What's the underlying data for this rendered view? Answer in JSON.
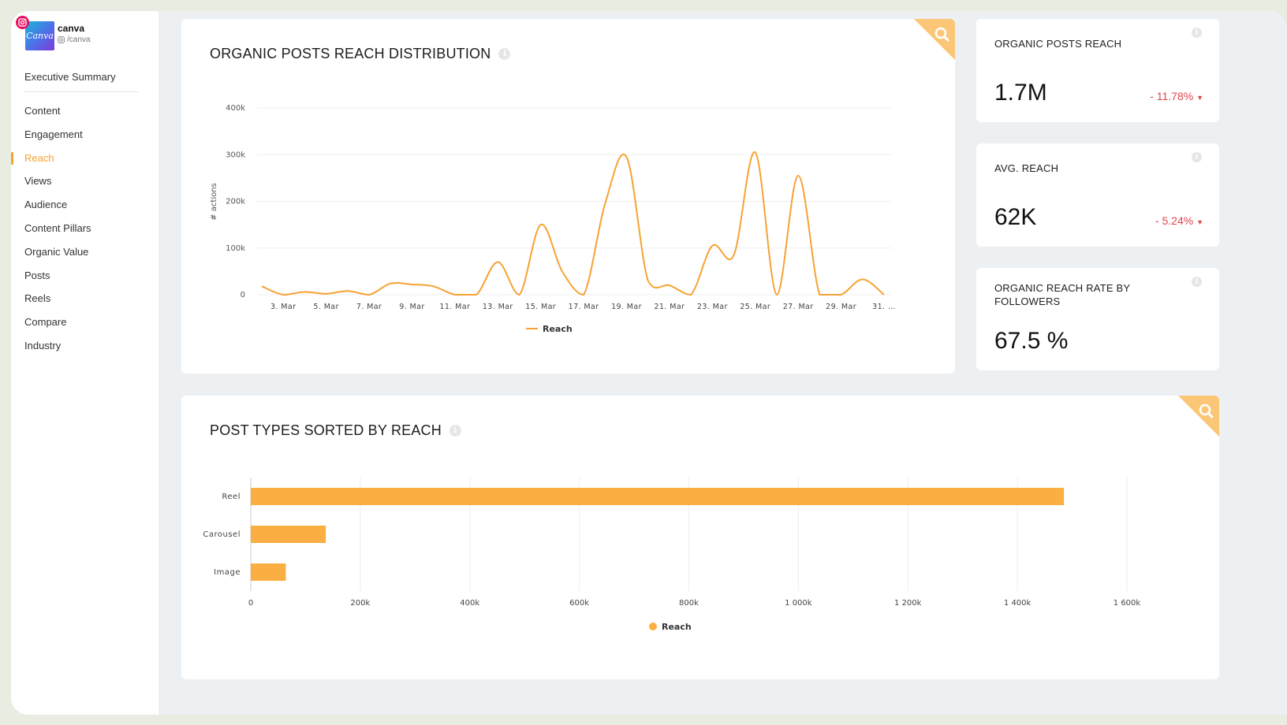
{
  "profile": {
    "name": "canva",
    "handle": "/canva",
    "logo_text": "Canva"
  },
  "nav": {
    "executive": "Executive Summary",
    "items": [
      {
        "label": "Content",
        "active": false
      },
      {
        "label": "Engagement",
        "active": false
      },
      {
        "label": "Reach",
        "active": true
      },
      {
        "label": "Views",
        "active": false
      },
      {
        "label": "Audience",
        "active": false
      },
      {
        "label": "Content Pillars",
        "active": false
      },
      {
        "label": "Organic Value",
        "active": false
      },
      {
        "label": "Posts",
        "active": false
      },
      {
        "label": "Reels",
        "active": false
      },
      {
        "label": "Compare",
        "active": false
      },
      {
        "label": "Industry",
        "active": false
      }
    ]
  },
  "colors": {
    "accent": "#f7a233",
    "negative": "#e0444a",
    "bar": "#fbae42"
  },
  "icons": {
    "search": "search-icon",
    "info": "info-icon",
    "instagram": "instagram-icon"
  },
  "reach_distribution": {
    "title": "ORGANIC POSTS REACH DISTRIBUTION",
    "chart_data": {
      "type": "line",
      "ylabel": "# actions",
      "y_ticks": [
        "0",
        "100k",
        "200k",
        "300k",
        "400k"
      ],
      "ylim": [
        0,
        400000
      ],
      "x_tick_labels": [
        "3. Mar",
        "5. Mar",
        "7. Mar",
        "9. Mar",
        "11. Mar",
        "13. Mar",
        "15. Mar",
        "17. Mar",
        "19. Mar",
        "21. Mar",
        "23. Mar",
        "25. Mar",
        "27. Mar",
        "29. Mar",
        "31. …"
      ],
      "x": [
        "2. Mar",
        "3. Mar",
        "4. Mar",
        "5. Mar",
        "6. Mar",
        "7. Mar",
        "8. Mar",
        "9. Mar",
        "10. Mar",
        "11. Mar",
        "12. Mar",
        "13. Mar",
        "14. Mar",
        "15. Mar",
        "16. Mar",
        "17. Mar",
        "18. Mar",
        "19. Mar",
        "20. Mar",
        "21. Mar",
        "22. Mar",
        "23. Mar",
        "24. Mar",
        "25. Mar",
        "26. Mar",
        "27. Mar",
        "28. Mar",
        "29. Mar",
        "30. Mar",
        "31. Mar"
      ],
      "series": [
        {
          "name": "Reach",
          "color": "#f7a233",
          "values": [
            18000,
            0,
            6000,
            2000,
            8000,
            0,
            24000,
            22000,
            18000,
            0,
            0,
            70000,
            0,
            150000,
            50000,
            0,
            195000,
            295000,
            30000,
            20000,
            0,
            105000,
            85000,
            305000,
            0,
            255000,
            0,
            0,
            33000,
            0
          ]
        }
      ],
      "legend": "bottom-center",
      "grid": true
    }
  },
  "kpis": [
    {
      "title": "ORGANIC POSTS REACH",
      "value": "1.7M",
      "delta": "- 11.78%"
    },
    {
      "title": "AVG. REACH",
      "value": "62K",
      "delta": "- 5.24%"
    },
    {
      "title": "ORGANIC REACH RATE BY FOLLOWERS",
      "value": "67.5 %",
      "delta": ""
    }
  ],
  "post_types": {
    "title": "POST TYPES SORTED BY REACH",
    "chart_data": {
      "type": "bar",
      "orientation": "horizontal",
      "categories": [
        "Reel",
        "Carousel",
        "Image"
      ],
      "series": [
        {
          "name": "Reach",
          "color": "#fbae42",
          "values": [
            1485000,
            137000,
            64000
          ]
        }
      ],
      "x_ticks": [
        "0",
        "200k",
        "400k",
        "600k",
        "800k",
        "1 000k",
        "1 200k",
        "1 400k",
        "1 600k"
      ],
      "xlim": [
        0,
        1600000
      ],
      "legend": "bottom-center",
      "grid": true
    }
  }
}
